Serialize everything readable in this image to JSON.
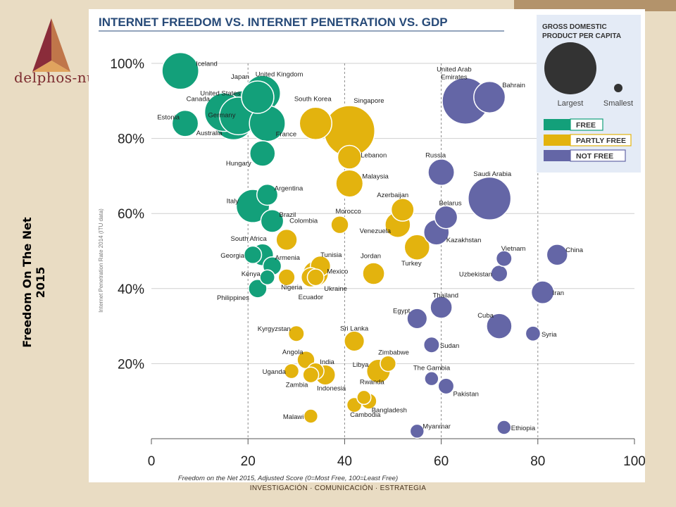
{
  "brand": {
    "name": "delphos-nu"
  },
  "side_title": "Freedom On The Net 2015",
  "footer_text": "INVESTIGACIÓN · COMUNICACIÓN · ESTRATEGIA",
  "colors": {
    "free": "#13a07a",
    "partly": "#e3b30e",
    "not_free": "#6466a6",
    "background": "#e9dcc3",
    "brand": "#7c2b2f"
  },
  "chart_data": {
    "type": "scatter",
    "title": "INTERNET FREEDOM VS. INTERNET PENETRATION VS. GDP",
    "xlabel": "Freedom on the Net 2015, Adjusted Score (0=Most Free, 100=Least Free)",
    "ylabel": "Internet Penetration Rate 2014 (ITU data)",
    "xlim": [
      0,
      100
    ],
    "ylim": [
      0,
      100
    ],
    "x_ticks": [
      "0",
      "20",
      "40",
      "60",
      "80",
      "100"
    ],
    "y_ticks": [
      "20%",
      "40%",
      "60%",
      "80%",
      "100%"
    ],
    "legend": {
      "title": "GROSS DOMESTIC PRODUCT PER CAPITA",
      "largest": "Largest",
      "smallest": "Smallest",
      "status_items": [
        "FREE",
        "PARTLY FREE",
        "NOT FREE"
      ]
    },
    "series": [
      {
        "name": "FREE",
        "points": [
          {
            "country": "Iceland",
            "x": 6,
            "y": 98,
            "gdp": 0.68
          },
          {
            "country": "Estonia",
            "x": 7,
            "y": 84,
            "gdp": 0.44
          },
          {
            "country": "Canada",
            "x": 15,
            "y": 87,
            "gdp": 0.72
          },
          {
            "country": "United States",
            "x": 19,
            "y": 87,
            "gdp": 0.82
          },
          {
            "country": "Australia",
            "x": 17,
            "y": 85,
            "gdp": 0.76
          },
          {
            "country": "Germany",
            "x": 18,
            "y": 86,
            "gdp": 0.7
          },
          {
            "country": "Japan",
            "x": 22,
            "y": 91,
            "gdp": 0.58
          },
          {
            "country": "United Kingdom",
            "x": 23,
            "y": 92,
            "gdp": 0.66
          },
          {
            "country": "France",
            "x": 24,
            "y": 84,
            "gdp": 0.66
          },
          {
            "country": "Hungary",
            "x": 23,
            "y": 76,
            "gdp": 0.42
          },
          {
            "country": "Italy",
            "x": 21,
            "y": 62,
            "gdp": 0.6
          },
          {
            "country": "Argentina",
            "x": 24,
            "y": 65,
            "gdp": 0.32
          },
          {
            "country": "Brazil",
            "x": 25,
            "y": 58,
            "gdp": 0.36
          },
          {
            "country": "South Africa",
            "x": 23,
            "y": 49,
            "gdp": 0.34
          },
          {
            "country": "Georgia",
            "x": 21,
            "y": 49,
            "gdp": 0.24
          },
          {
            "country": "Armenia",
            "x": 25,
            "y": 46,
            "gdp": 0.26
          },
          {
            "country": "Kenya",
            "x": 24,
            "y": 43,
            "gdp": 0.18
          },
          {
            "country": "Philippines",
            "x": 22,
            "y": 40,
            "gdp": 0.26
          }
        ]
      },
      {
        "name": "PARTLY FREE",
        "points": [
          {
            "country": "South Korea",
            "x": 34,
            "y": 84,
            "gdp": 0.58
          },
          {
            "country": "Singapore",
            "x": 41,
            "y": 82,
            "gdp": 1.0
          },
          {
            "country": "Lebanon",
            "x": 41,
            "y": 75,
            "gdp": 0.38
          },
          {
            "country": "Malaysia",
            "x": 41,
            "y": 68,
            "gdp": 0.46
          },
          {
            "country": "Azerbaijan",
            "x": 52,
            "y": 61,
            "gdp": 0.36
          },
          {
            "country": "Morocco",
            "x": 39,
            "y": 57,
            "gdp": 0.24
          },
          {
            "country": "Venezuela",
            "x": 51,
            "y": 57,
            "gdp": 0.42
          },
          {
            "country": "Colombia",
            "x": 28,
            "y": 53,
            "gdp": 0.32
          },
          {
            "country": "Turkey",
            "x": 55,
            "y": 51,
            "gdp": 0.42
          },
          {
            "country": "Tunisia",
            "x": 35,
            "y": 46,
            "gdp": 0.3
          },
          {
            "country": "Mexico",
            "x": 34,
            "y": 44,
            "gdp": 0.42
          },
          {
            "country": "Ukraine",
            "x": 34,
            "y": 43,
            "gdp": 0.22
          },
          {
            "country": "Ecuador",
            "x": 33,
            "y": 43,
            "gdp": 0.28
          },
          {
            "country": "Jordan",
            "x": 46,
            "y": 44,
            "gdp": 0.34
          },
          {
            "country": "Nigeria",
            "x": 28,
            "y": 43,
            "gdp": 0.22
          },
          {
            "country": "Kyrgyzstan",
            "x": 30,
            "y": 28,
            "gdp": 0.2
          },
          {
            "country": "Sri Lanka",
            "x": 42,
            "y": 26,
            "gdp": 0.3
          },
          {
            "country": "Angola",
            "x": 32,
            "y": 21,
            "gdp": 0.24
          },
          {
            "country": "Zimbabwe",
            "x": 49,
            "y": 20,
            "gdp": 0.2
          },
          {
            "country": "Uganda",
            "x": 29,
            "y": 18,
            "gdp": 0.18
          },
          {
            "country": "India",
            "x": 34,
            "y": 18,
            "gdp": 0.22
          },
          {
            "country": "Zambia",
            "x": 33,
            "y": 17,
            "gdp": 0.2
          },
          {
            "country": "Indonesia",
            "x": 36,
            "y": 17,
            "gdp": 0.3
          },
          {
            "country": "Libya",
            "x": 47,
            "y": 18,
            "gdp": 0.38
          },
          {
            "country": "Rwanda",
            "x": 44,
            "y": 11,
            "gdp": 0.16
          },
          {
            "country": "Bangladesh",
            "x": 45,
            "y": 10,
            "gdp": 0.2
          },
          {
            "country": "Cambodia",
            "x": 42,
            "y": 9,
            "gdp": 0.18
          },
          {
            "country": "Malawi",
            "x": 33,
            "y": 6,
            "gdp": 0.16
          }
        ]
      },
      {
        "name": "NOT FREE",
        "points": [
          {
            "country": "United Arab Emirates",
            "x": 65,
            "y": 90,
            "gdp": 0.9
          },
          {
            "country": "Bahrain",
            "x": 70,
            "y": 91,
            "gdp": 0.56
          },
          {
            "country": "Russia",
            "x": 60,
            "y": 71,
            "gdp": 0.44
          },
          {
            "country": "Saudi Arabia",
            "x": 70,
            "y": 64,
            "gdp": 0.82
          },
          {
            "country": "Belarus",
            "x": 61,
            "y": 59,
            "gdp": 0.36
          },
          {
            "country": "Kazakhstan",
            "x": 59,
            "y": 55,
            "gdp": 0.42
          },
          {
            "country": "Vietnam",
            "x": 73,
            "y": 48,
            "gdp": 0.2
          },
          {
            "country": "China",
            "x": 84,
            "y": 49,
            "gdp": 0.32
          },
          {
            "country": "Uzbekistan",
            "x": 72,
            "y": 44,
            "gdp": 0.22
          },
          {
            "country": "Iran",
            "x": 81,
            "y": 39,
            "gdp": 0.36
          },
          {
            "country": "Thailand",
            "x": 60,
            "y": 35,
            "gdp": 0.34
          },
          {
            "country": "Egypt",
            "x": 55,
            "y": 32,
            "gdp": 0.3
          },
          {
            "country": "Cuba",
            "x": 72,
            "y": 30,
            "gdp": 0.42
          },
          {
            "country": "Syria",
            "x": 79,
            "y": 28,
            "gdp": 0.18
          },
          {
            "country": "Sudan",
            "x": 58,
            "y": 25,
            "gdp": 0.2
          },
          {
            "country": "The Gambia",
            "x": 58,
            "y": 16,
            "gdp": 0.16
          },
          {
            "country": "Pakistan",
            "x": 61,
            "y": 14,
            "gdp": 0.2
          },
          {
            "country": "Myanmar",
            "x": 55,
            "y": 2,
            "gdp": 0.16
          },
          {
            "country": "Ethiopia",
            "x": 73,
            "y": 3,
            "gdp": 0.16
          }
        ]
      }
    ]
  }
}
